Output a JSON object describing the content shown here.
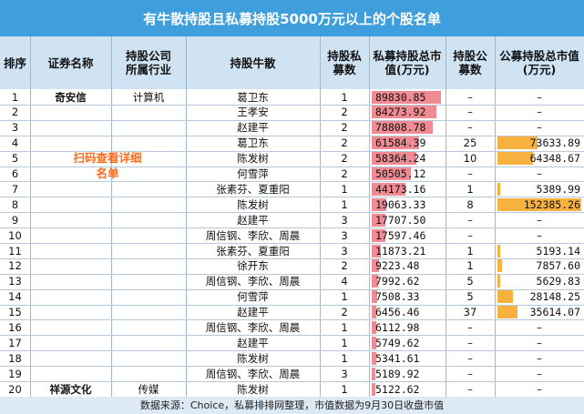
{
  "title": "有牛散持股且私募持股5000万元以上的个股名单",
  "headers": [
    "排序",
    "证券名称",
    "持股公司所属行业",
    "持股牛散",
    "持股私募数",
    "私募持股总市值(万元)",
    "持股公募数",
    "公募持股总市值(万元)"
  ],
  "promo_text": "扫码查看详细名单",
  "rows": [
    {
      "rank": "1",
      "name": "奇安信",
      "industry": "计算机",
      "holders": "葛卫东",
      "pe_count": "1",
      "pe_value": "89830.85",
      "pe_bar": 89830.85,
      "mf_count": "–",
      "mf_value": "–",
      "mf_bar": 0
    },
    {
      "rank": "2",
      "name": "",
      "industry": "",
      "holders": "王孝安",
      "pe_count": "2",
      "pe_value": "84273.92",
      "pe_bar": 84273.92,
      "mf_count": "–",
      "mf_value": "–",
      "mf_bar": 0
    },
    {
      "rank": "3",
      "name": "",
      "industry": "",
      "holders": "赵建平",
      "pe_count": "2",
      "pe_value": "78808.78",
      "pe_bar": 78808.78,
      "mf_count": "–",
      "mf_value": "–",
      "mf_bar": 0
    },
    {
      "rank": "4",
      "name": "",
      "industry": "",
      "holders": "葛卫东",
      "pe_count": "2",
      "pe_value": "61584.39",
      "pe_bar": 61584.39,
      "mf_count": "25",
      "mf_value": "73633.89",
      "mf_bar": 73633.89
    },
    {
      "rank": "5",
      "name": "",
      "industry": "",
      "holders": "陈发树",
      "pe_count": "2",
      "pe_value": "58364.24",
      "pe_bar": 58364.24,
      "mf_count": "10",
      "mf_value": "64348.67",
      "mf_bar": 64348.67
    },
    {
      "rank": "6",
      "name": "",
      "industry": "",
      "holders": "何雪萍",
      "pe_count": "2",
      "pe_value": "50505.12",
      "pe_bar": 50505.12,
      "mf_count": "–",
      "mf_value": "–",
      "mf_bar": 0
    },
    {
      "rank": "7",
      "name": "",
      "industry": "",
      "holders": "张素芬、夏重阳",
      "pe_count": "1",
      "pe_value": "44173.16",
      "pe_bar": 44173.16,
      "mf_count": "1",
      "mf_value": "5389.99",
      "mf_bar": 5389.99
    },
    {
      "rank": "8",
      "name": "",
      "industry": "",
      "holders": "陈发树",
      "pe_count": "1",
      "pe_value": "19063.33",
      "pe_bar": 19063.33,
      "mf_count": "8",
      "mf_value": "152385.26",
      "mf_bar": 152385.26
    },
    {
      "rank": "9",
      "name": "",
      "industry": "",
      "holders": "赵建平",
      "pe_count": "3",
      "pe_value": "17707.50",
      "pe_bar": 17707.5,
      "mf_count": "–",
      "mf_value": "–",
      "mf_bar": 0
    },
    {
      "rank": "10",
      "name": "",
      "industry": "",
      "holders": "周信钢、李欣、周晨",
      "pe_count": "3",
      "pe_value": "17597.46",
      "pe_bar": 17597.46,
      "mf_count": "–",
      "mf_value": "–",
      "mf_bar": 0
    },
    {
      "rank": "11",
      "name": "",
      "industry": "",
      "holders": "张素芬、夏重阳",
      "pe_count": "3",
      "pe_value": "11873.21",
      "pe_bar": 11873.21,
      "mf_count": "1",
      "mf_value": "5193.14",
      "mf_bar": 5193.14
    },
    {
      "rank": "12",
      "name": "",
      "industry": "",
      "holders": "徐开东",
      "pe_count": "2",
      "pe_value": "9223.48",
      "pe_bar": 9223.48,
      "mf_count": "1",
      "mf_value": "7857.60",
      "mf_bar": 7857.6
    },
    {
      "rank": "13",
      "name": "",
      "industry": "",
      "holders": "周信钢、李欣、周晨",
      "pe_count": "4",
      "pe_value": "7992.62",
      "pe_bar": 7992.62,
      "mf_count": "5",
      "mf_value": "5629.83",
      "mf_bar": 5629.83
    },
    {
      "rank": "14",
      "name": "",
      "industry": "",
      "holders": "何雪萍",
      "pe_count": "1",
      "pe_value": "7508.33",
      "pe_bar": 7508.33,
      "mf_count": "5",
      "mf_value": "28148.25",
      "mf_bar": 28148.25
    },
    {
      "rank": "15",
      "name": "",
      "industry": "",
      "holders": "赵建平",
      "pe_count": "2",
      "pe_value": "6456.46",
      "pe_bar": 6456.46,
      "mf_count": "37",
      "mf_value": "35614.07",
      "mf_bar": 35614.07
    },
    {
      "rank": "16",
      "name": "",
      "industry": "",
      "holders": "周信钢、李欣、周晨",
      "pe_count": "1",
      "pe_value": "6112.98",
      "pe_bar": 6112.98,
      "mf_count": "–",
      "mf_value": "–",
      "mf_bar": 0
    },
    {
      "rank": "17",
      "name": "",
      "industry": "",
      "holders": "赵建平",
      "pe_count": "1",
      "pe_value": "5749.62",
      "pe_bar": 5749.62,
      "mf_count": "–",
      "mf_value": "–",
      "mf_bar": 0
    },
    {
      "rank": "18",
      "name": "",
      "industry": "",
      "holders": "陈发树",
      "pe_count": "1",
      "pe_value": "5341.61",
      "pe_bar": 5341.61,
      "mf_count": "–",
      "mf_value": "–",
      "mf_bar": 0
    },
    {
      "rank": "19",
      "name": "",
      "industry": "",
      "holders": "周信钢、李欣、周晨",
      "pe_count": "3",
      "pe_value": "5189.92",
      "pe_bar": 5189.92,
      "mf_count": "–",
      "mf_value": "–",
      "mf_bar": 0
    },
    {
      "rank": "20",
      "name": "祥源文化",
      "industry": "传媒",
      "holders": "陈发树",
      "pe_count": "1",
      "pe_value": "5122.62",
      "pe_bar": 5122.62,
      "mf_count": "–",
      "mf_value": "–",
      "mf_bar": 0
    }
  ],
  "footer": "数据来源：Choice，私募排排网整理，市值数据为9月30日收盘市值",
  "colors": {
    "title_bg": "#3f9fdc",
    "header_bg": "#cfe3f3",
    "pe_bar": "#f08a93",
    "mf_bar": "#f6b13e",
    "promo": "#ff6a1a"
  }
}
